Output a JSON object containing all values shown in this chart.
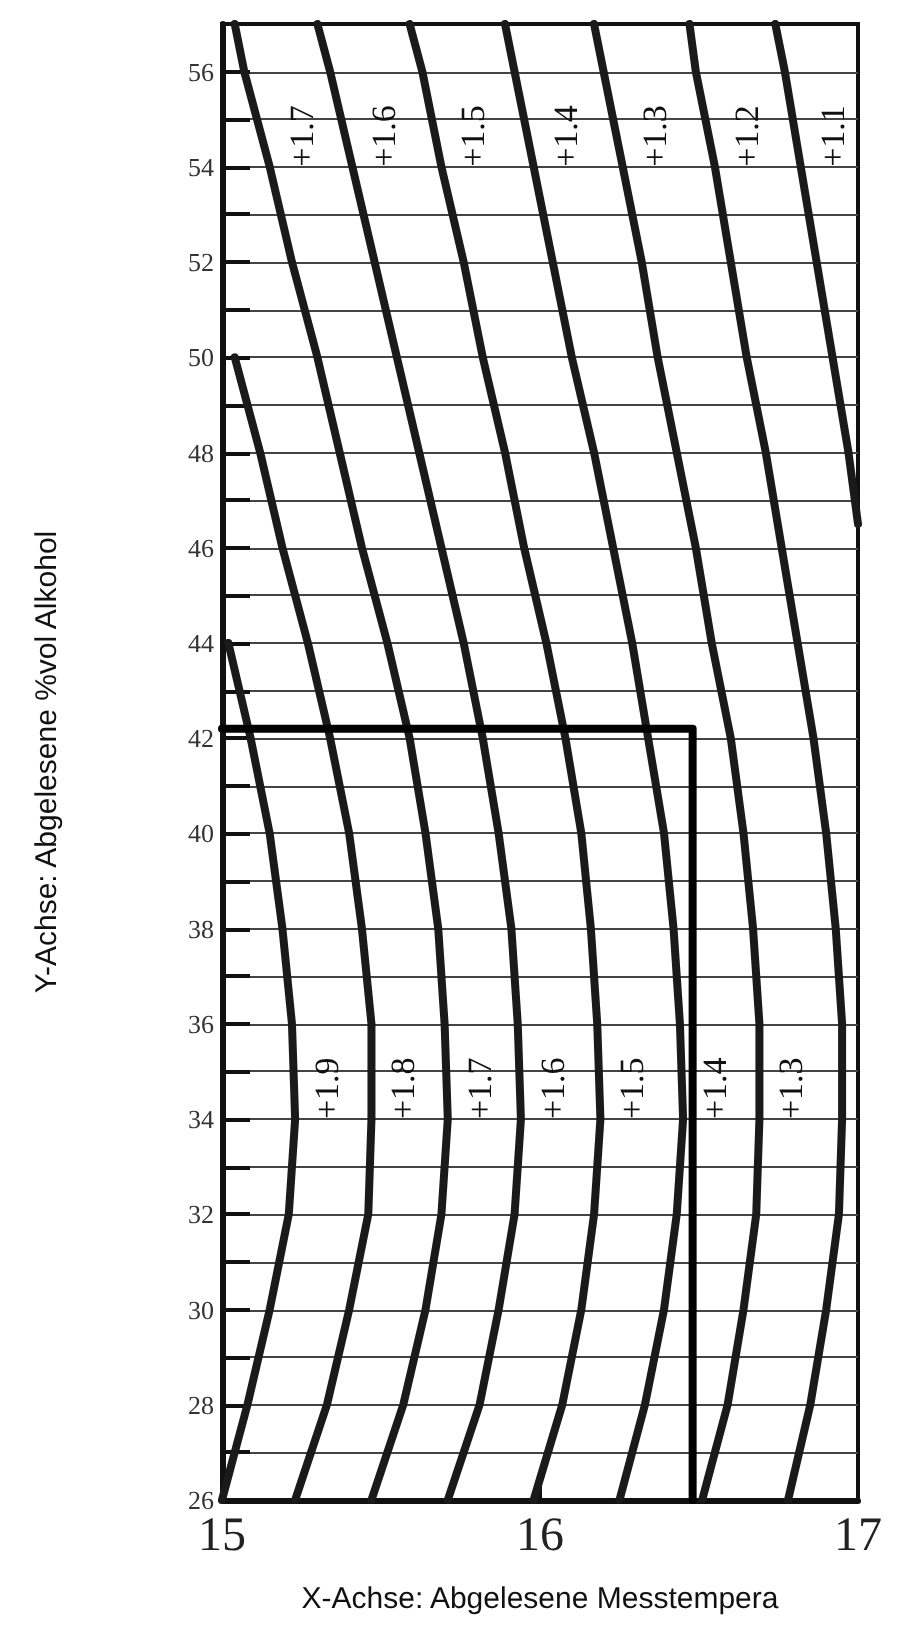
{
  "chart_data": {
    "type": "line",
    "xlabel": "X-Achse: Abgelesene Messtempera",
    "ylabel": "Y-Achse: Abgelesene %vol Alkohol",
    "xlim": [
      15,
      17
    ],
    "xticks": [
      15,
      16,
      17
    ],
    "ylim": [
      26,
      57
    ],
    "yticks": [
      26,
      {
        "value": 27,
        "label": null
      },
      28,
      {
        "value": 29,
        "label": null
      },
      30,
      {
        "value": 31,
        "label": null
      },
      32,
      {
        "value": 33,
        "label": null
      },
      34,
      {
        "value": 35,
        "label": null
      },
      36,
      {
        "value": 37,
        "label": null
      },
      38,
      {
        "value": 39,
        "label": null
      },
      40,
      {
        "value": 41,
        "label": null
      },
      42,
      {
        "value": 43,
        "label": null
      },
      44,
      {
        "value": 45,
        "label": null
      },
      46,
      {
        "value": 47,
        "label": null
      },
      48,
      {
        "value": 49,
        "label": null
      },
      50,
      {
        "value": 51,
        "label": null
      },
      52,
      {
        "value": 53,
        "label": null
      },
      54,
      {
        "value": 55,
        "label": null
      },
      56
    ],
    "grid": "y",
    "legend": false,
    "marker": "none",
    "series": [
      {
        "name": "+1.9",
        "color": "#1a1a1a",
        "x": [
          15.0,
          15.08,
          15.15,
          15.21,
          15.23,
          15.22,
          15.19,
          15.15,
          15.09,
          15.02
        ],
        "values": [
          26,
          28,
          30,
          32,
          34,
          36,
          38,
          40,
          42,
          44
        ]
      },
      {
        "name": "+1.8",
        "color": "#1a1a1a",
        "x": [
          15.23,
          15.33,
          15.4,
          15.46,
          15.47,
          15.47,
          15.44,
          15.4,
          15.34,
          15.27,
          15.19,
          15.12,
          15.04
        ],
        "values": [
          26,
          28,
          30,
          32,
          34,
          36,
          38,
          40,
          42,
          44,
          46,
          48,
          50
        ]
      },
      {
        "name": "+1.7",
        "color": "#1a1a1a",
        "x": [
          15.47,
          15.57,
          15.64,
          15.69,
          15.71,
          15.7,
          15.68,
          15.64,
          15.59,
          15.52,
          15.44,
          15.37,
          15.3,
          15.22,
          15.15,
          15.07,
          15.04
        ],
        "values": [
          26,
          28,
          30,
          32,
          34,
          36,
          38,
          40,
          42,
          44,
          46,
          48,
          50,
          52,
          54,
          56,
          57
        ]
      },
      {
        "name": "+1.6",
        "color": "#1a1a1a",
        "x": [
          15.71,
          15.81,
          15.87,
          15.92,
          15.94,
          15.93,
          15.91,
          15.87,
          15.82,
          15.76,
          15.69,
          15.62,
          15.55,
          15.48,
          15.41,
          15.34,
          15.3
        ],
        "values": [
          26,
          28,
          30,
          32,
          34,
          36,
          38,
          40,
          42,
          44,
          46,
          48,
          50,
          52,
          54,
          56,
          57
        ]
      },
      {
        "name": "+1.5",
        "color": "#1a1a1a",
        "x": [
          15.98,
          16.07,
          16.13,
          16.17,
          16.19,
          16.18,
          16.16,
          16.13,
          16.08,
          16.02,
          15.95,
          15.89,
          15.82,
          15.76,
          15.69,
          15.63,
          15.59
        ],
        "values": [
          26,
          28,
          30,
          32,
          34,
          36,
          38,
          40,
          42,
          44,
          46,
          48,
          50,
          52,
          54,
          56,
          57
        ]
      },
      {
        "name": "+1.4",
        "color": "#1a1a1a",
        "x": [
          16.25,
          16.33,
          16.39,
          16.43,
          16.45,
          16.44,
          16.42,
          16.39,
          16.34,
          16.29,
          16.23,
          16.17,
          16.1,
          16.04,
          15.98,
          15.92,
          15.89
        ],
        "values": [
          26,
          28,
          30,
          32,
          34,
          36,
          38,
          40,
          42,
          44,
          46,
          48,
          50,
          52,
          54,
          56,
          57
        ]
      },
      {
        "name": "+1.3",
        "color": "#1a1a1a",
        "x": [
          16.51,
          16.59,
          16.64,
          16.68,
          16.69,
          16.69,
          16.67,
          16.64,
          16.6,
          16.54,
          16.49,
          16.43,
          16.37,
          16.32,
          16.26,
          16.2,
          16.17
        ],
        "values": [
          26,
          28,
          30,
          32,
          34,
          36,
          38,
          40,
          42,
          44,
          46,
          48,
          50,
          52,
          54,
          56,
          57
        ]
      },
      {
        "name": "+1.2",
        "color": "#1a1a1a",
        "x": [
          16.78,
          16.85,
          16.9,
          16.94,
          16.95,
          16.95,
          16.93,
          16.9,
          16.86,
          16.81,
          16.76,
          16.71,
          16.65,
          16.6,
          16.55,
          16.49,
          16.47
        ],
        "values": [
          26,
          28,
          30,
          32,
          34,
          36,
          38,
          40,
          42,
          44,
          46,
          48,
          50,
          52,
          54,
          56,
          57
        ]
      },
      {
        "name": "+1.1",
        "color": "#1a1a1a",
        "x": [
          17.0,
          16.97,
          16.92,
          16.87,
          16.82,
          16.77,
          16.74
        ],
        "values": [
          46.5,
          48,
          50,
          52,
          54,
          56,
          57
        ]
      },
      {
        "color": "#000000",
        "x": [
          15,
          16.48,
          16.48
        ],
        "values": [
          42.2,
          42.2,
          26
        ]
      }
    ]
  }
}
